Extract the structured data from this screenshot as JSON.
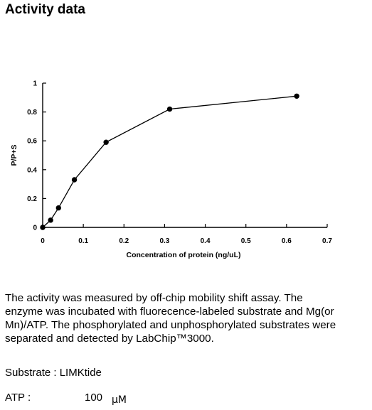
{
  "page": {
    "title": "Activity data"
  },
  "chart_data": {
    "type": "line",
    "title": "",
    "xlabel": "Concentration of protein (ng/uL)",
    "ylabel": "P/P+S",
    "xlim": [
      0,
      0.7
    ],
    "ylim": [
      0,
      1
    ],
    "x_ticks": [
      "0",
      "0.1",
      "0.2",
      "0.3",
      "0.4",
      "0.5",
      "0.6",
      "0.7"
    ],
    "y_ticks": [
      "0",
      "0.2",
      "0.4",
      "0.6",
      "0.8",
      "1"
    ],
    "grid": false,
    "legend": false,
    "series": [
      {
        "x": [
          0,
          0.0195,
          0.039,
          0.078,
          0.156,
          0.3125,
          0.625
        ],
        "y": [
          0.0,
          0.05,
          0.135,
          0.33,
          0.59,
          0.82,
          0.91
        ]
      }
    ],
    "colors": {
      "line": "#000000",
      "marker": "#000000"
    }
  },
  "description": "The activity was measured by off-chip mobility shift assay. The\nenzyme was incubated with fluorecence-labeled  substrate and Mg(or\nMn)/ATP. The phosphorylated and unphosphorylated substrates were\nseparated and detected by LabChip™3000.",
  "info": {
    "substrate": "Substrate : LIMKtide",
    "atp_label": "ATP :",
    "atp_value": "100",
    "atp_unit": "μM"
  }
}
